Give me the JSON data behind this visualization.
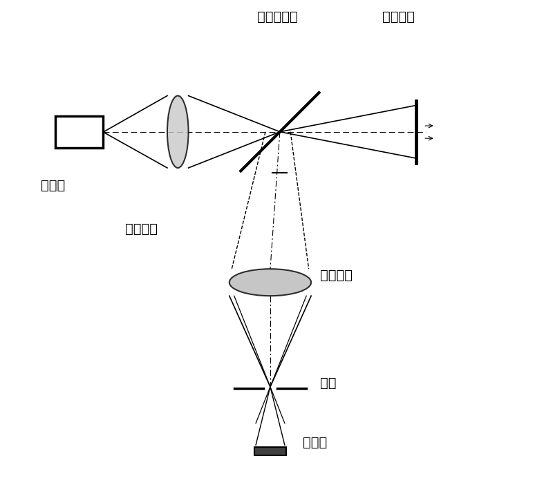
{
  "bg_color": "#ffffff",
  "line_color": "#000000",
  "gray_color": "#888888",
  "light_gray": "#cccccc",
  "labels": {
    "point_source": "点光源",
    "illumination_lens": "照明物镜",
    "beamsplitter": "半透半反镜",
    "scan_sample": "扫描样本",
    "imaging_lens": "成像物镜",
    "pinhole": "针孔",
    "detector": "探测器"
  }
}
